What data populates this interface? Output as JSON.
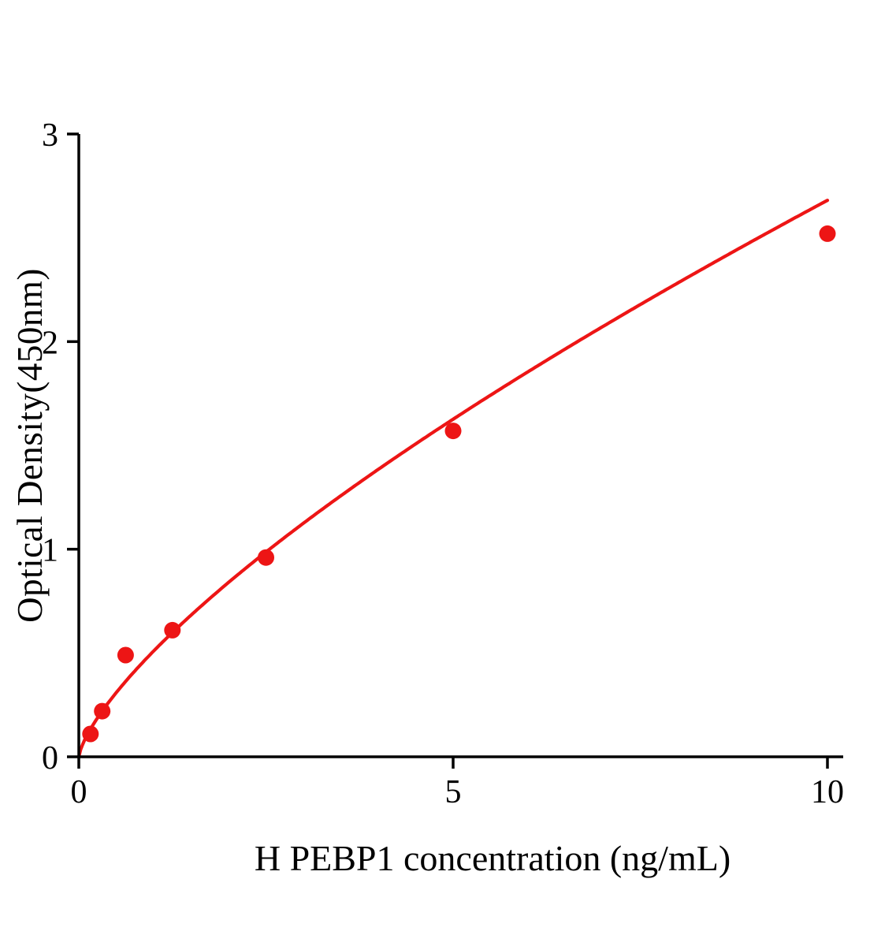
{
  "chart_data": {
    "type": "scatter",
    "title": "",
    "xlabel": "H PEBP1 concentration (ng/mL)",
    "ylabel": "Optical Density(450nm)",
    "x": [
      0.156,
      0.3125,
      0.625,
      1.25,
      2.5,
      5,
      10
    ],
    "y": [
      0.11,
      0.22,
      0.49,
      0.61,
      0.96,
      1.57,
      2.52
    ],
    "xlim": [
      0,
      10
    ],
    "ylim": [
      0,
      3
    ],
    "x_ticks": [
      0,
      5,
      10
    ],
    "y_ticks": [
      0,
      1,
      2,
      3
    ],
    "point_color": "#ed1515",
    "line_color": "#ed1515",
    "axis_color": "#000000",
    "curve": "power-fit",
    "grid": false,
    "legend": false
  }
}
